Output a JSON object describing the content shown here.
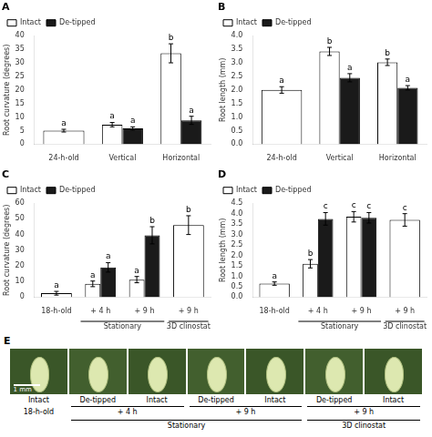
{
  "chart_data": [
    {
      "type": "bar",
      "title": "A",
      "ylabel": "Root curvature (degrees)",
      "categories": [
        "24-h-old",
        "Vertical",
        "Horizontal"
      ],
      "series": [
        {
          "name": "Intact",
          "color": "#ffffff",
          "values": [
            5.0,
            7.2,
            33.5
          ],
          "errors": [
            0.5,
            0.8,
            3.5
          ],
          "annotations": [
            "a",
            "a",
            "b"
          ]
        },
        {
          "name": "De-tipped",
          "color": "#1a1a1a",
          "values": [
            null,
            5.8,
            8.8
          ],
          "errors": [
            null,
            0.6,
            1.5
          ],
          "annotations": [
            null,
            "a",
            "a"
          ]
        }
      ],
      "ylim": [
        0,
        40
      ],
      "yticks": [
        0,
        5,
        10,
        15,
        20,
        25,
        30,
        35,
        40
      ],
      "grid": false,
      "legend": "upper left"
    },
    {
      "type": "bar",
      "title": "B",
      "ylabel": "Root length (mm)",
      "categories": [
        "24-h-old",
        "Vertical",
        "Horizontal"
      ],
      "series": [
        {
          "name": "Intact",
          "color": "#ffffff",
          "values": [
            2.0,
            3.42,
            3.02
          ],
          "errors": [
            0.12,
            0.15,
            0.12
          ],
          "annotations": [
            "a",
            "b",
            "b"
          ]
        },
        {
          "name": "De-tipped",
          "color": "#1a1a1a",
          "values": [
            null,
            2.45,
            2.08
          ],
          "errors": [
            null,
            0.15,
            0.08
          ],
          "annotations": [
            null,
            "a",
            "a"
          ]
        }
      ],
      "ylim": [
        0,
        4
      ],
      "yticks": [
        {
          "value": 0,
          "label": "0.0"
        },
        0.5,
        {
          "value": 1,
          "label": "1.0"
        },
        1.5,
        {
          "value": 2,
          "label": "2.0"
        },
        2.5,
        {
          "value": 3,
          "label": "3.0"
        },
        3.5,
        {
          "value": 4,
          "label": "4.0"
        }
      ],
      "grid": false,
      "legend": "upper left"
    },
    {
      "type": "bar",
      "title": "C",
      "ylabel": "Root curvature (degrees)",
      "categories": [
        "18-h-old",
        "+ 4 h",
        "+ 9 h",
        "+ 9 h"
      ],
      "series": [
        {
          "name": "Intact",
          "color": "#ffffff",
          "values": [
            2.5,
            8.5,
            11.2,
            46.0
          ],
          "errors": [
            1.2,
            1.8,
            2.0,
            6.0
          ],
          "annotations": [
            "a",
            "a",
            "a",
            "b"
          ]
        },
        {
          "name": "De-tipped",
          "color": "#1a1a1a",
          "values": [
            null,
            19.0,
            39.5,
            null
          ],
          "errors": [
            null,
            3.0,
            5.5,
            null
          ],
          "annotations": [
            null,
            "a",
            "b",
            null
          ]
        }
      ],
      "annotations": [
        {
          "text": "Stationary",
          "from": 1,
          "to": 2
        },
        {
          "text": "3D clinostat",
          "from": 3,
          "to": 3
        }
      ],
      "ylim": [
        0,
        60
      ],
      "yticks": [
        0,
        10,
        20,
        30,
        40,
        50,
        60
      ],
      "grid": false,
      "legend": "upper left"
    },
    {
      "type": "bar",
      "title": "D",
      "ylabel": "Root length (mm)",
      "categories": [
        "18-h-old",
        "+ 4 h",
        "+ 9 h",
        "+ 9 h"
      ],
      "series": [
        {
          "name": "Intact",
          "color": "#ffffff",
          "values": [
            0.65,
            1.6,
            3.85,
            3.7
          ],
          "errors": [
            0.08,
            0.2,
            0.25,
            0.3
          ],
          "annotations": [
            "a",
            "b",
            "c",
            "c"
          ]
        },
        {
          "name": "De-tipped",
          "color": "#1a1a1a",
          "values": [
            null,
            3.75,
            3.8,
            null
          ],
          "errors": [
            null,
            0.3,
            0.25,
            null
          ],
          "annotations": [
            null,
            "c",
            "c",
            null
          ]
        }
      ],
      "annotations": [
        {
          "text": "Stationary",
          "from": 1,
          "to": 2
        },
        {
          "text": "3D clinostat",
          "from": 3,
          "to": 3
        }
      ],
      "ylim": [
        0,
        4.5
      ],
      "yticks": [
        {
          "value": 0,
          "label": "0.0"
        },
        0.5,
        {
          "value": 1,
          "label": "1.0"
        },
        1.5,
        {
          "value": 2,
          "label": "2.0"
        },
        2.5,
        {
          "value": 3,
          "label": "3.0"
        },
        3.5,
        {
          "value": 4,
          "label": "4.0"
        },
        4.5
      ],
      "grid": false,
      "legend": "upper left"
    },
    {
      "type": "image_strip",
      "title": "E",
      "categories": [
        "Intact",
        "De-tipped",
        "Intact",
        "De-tipped",
        "Intact",
        "De-tipped",
        "Intact"
      ],
      "colors": [
        "#3a5628",
        "#425f2e",
        "#3a5628",
        "#425f2e",
        "#3a5628",
        "#425f2e",
        "#3a5628"
      ],
      "annotations": [
        {
          "text": "1 mm"
        },
        {
          "text": "18-h-old",
          "from": 0,
          "to": 0
        },
        {
          "text": "+ 4 h",
          "from": 1,
          "to": 2
        },
        {
          "text": "+ 9 h",
          "from": 3,
          "to": 4
        },
        {
          "text": "Stationary",
          "from": 1,
          "to": 4
        },
        {
          "text": "+ 9 h",
          "from": 5,
          "to": 6
        },
        {
          "text": "3D clinostat",
          "from": 5,
          "to": 6
        }
      ]
    }
  ]
}
